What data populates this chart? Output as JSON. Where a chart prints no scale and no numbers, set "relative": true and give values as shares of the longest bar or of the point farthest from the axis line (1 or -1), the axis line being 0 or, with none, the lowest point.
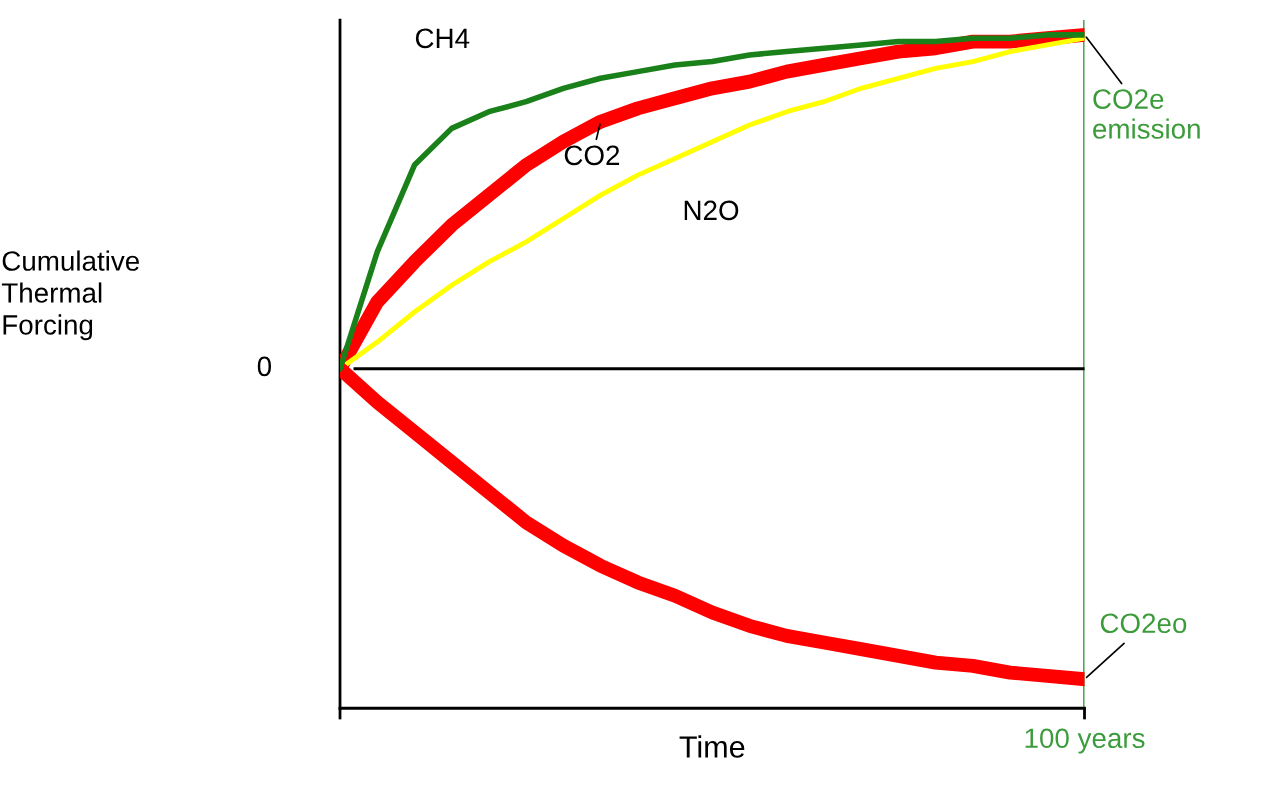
{
  "chart_data": {
    "type": "line",
    "relative": true,
    "xlabel": "Time",
    "categories": [
      null,
      null,
      null,
      null,
      null,
      null,
      null,
      null,
      null,
      null,
      null,
      null,
      null,
      null,
      null,
      null,
      null,
      null,
      null,
      null,
      null
    ],
    "grid": false,
    "legend": false,
    "marker": "none",
    "line_style": "solid",
    "ref_lines": [
      {
        "axis": "x",
        "label": "100 years",
        "color": "#3c9c3c"
      }
    ],
    "annotations": [
      "0",
      "CO2e\nemission",
      "Cumulative\nThermal\nForcing"
    ],
    "series": [
      {
        "name": "CH4",
        "color": "#1a801a",
        "values": [
          0,
          0.35,
          0.61,
          0.72,
          0.77,
          0.8,
          0.84,
          0.87,
          0.89,
          0.91,
          0.92,
          0.94,
          0.95,
          0.96,
          0.97,
          0.98,
          0.98,
          0.99,
          0.99,
          1.0,
          1.0
        ]
      },
      {
        "name": "CO2",
        "color": "#ff0000",
        "values": [
          0,
          0.2,
          0.32,
          0.43,
          0.52,
          0.61,
          0.68,
          0.74,
          0.78,
          0.81,
          0.84,
          0.86,
          0.89,
          0.91,
          0.93,
          0.95,
          0.96,
          0.98,
          0.98,
          0.99,
          1.0
        ]
      },
      {
        "name": "N2O",
        "color": "#ffff00",
        "values": [
          0,
          0.08,
          0.17,
          0.25,
          0.32,
          0.38,
          0.45,
          0.52,
          0.58,
          0.63,
          0.68,
          0.73,
          0.77,
          0.8,
          0.84,
          0.87,
          0.9,
          0.92,
          0.95,
          0.97,
          0.99
        ]
      },
      {
        "name": "CO2eo",
        "color": "#ff0000",
        "values": [
          0,
          -0.1,
          -0.19,
          -0.28,
          -0.37,
          -0.46,
          -0.53,
          -0.59,
          -0.64,
          -0.68,
          -0.73,
          -0.77,
          -0.8,
          -0.82,
          -0.84,
          -0.86,
          -0.88,
          -0.89,
          -0.91,
          -0.92,
          -0.93
        ]
      }
    ]
  }
}
